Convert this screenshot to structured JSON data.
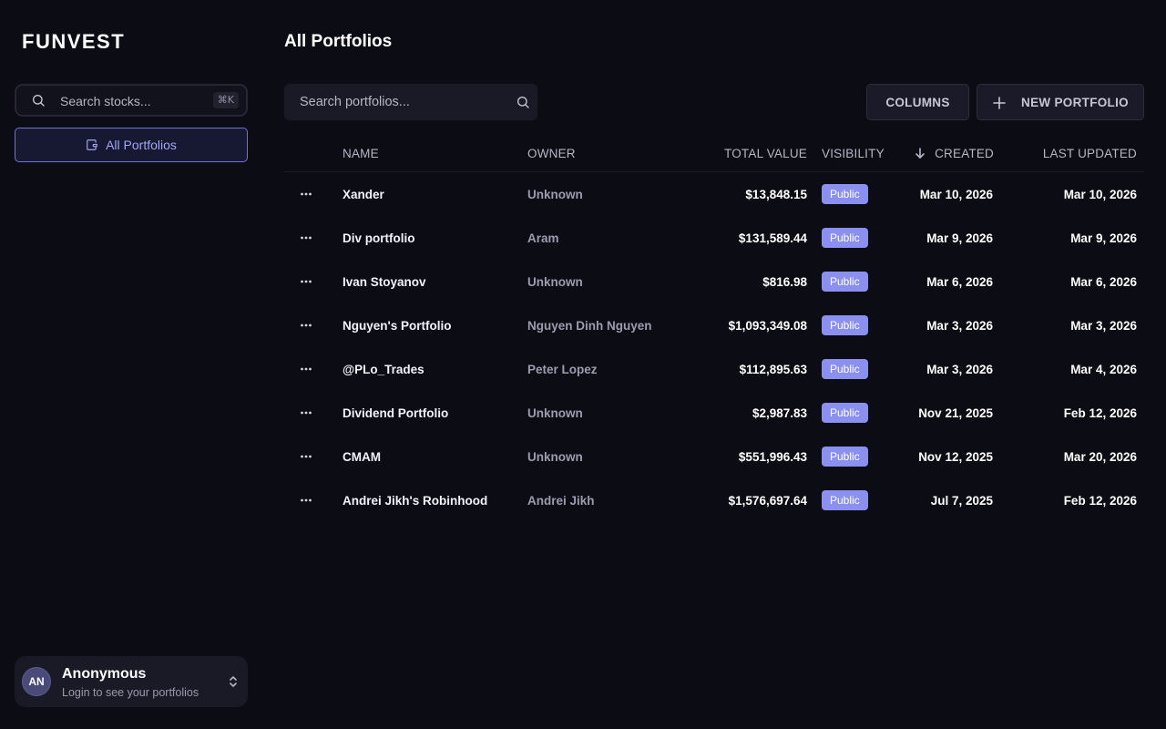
{
  "app": {
    "logo": "FUNVEST"
  },
  "sidebar": {
    "search_placeholder": "Search stocks...",
    "search_shortcut": "⌘K",
    "nav": [
      {
        "label": "All Portfolios",
        "active": true
      }
    ]
  },
  "user": {
    "initials": "AN",
    "name": "Anonymous",
    "subtitle": "Login to see your portfolios"
  },
  "main": {
    "title": "All Portfolios",
    "search_placeholder": "Search portfolios...",
    "columns_button": "COLUMNS",
    "new_button": "NEW PORTFOLIO"
  },
  "table": {
    "headers": {
      "name": "NAME",
      "owner": "OWNER",
      "total": "TOTAL VALUE",
      "visibility": "VISIBILITY",
      "created": "CREATED",
      "updated": "LAST UPDATED"
    },
    "sort": {
      "column": "created",
      "direction": "desc"
    },
    "rows": [
      {
        "name": "Xander",
        "owner": "Unknown",
        "total": "$13,848.15",
        "visibility": "Public",
        "created": "Mar 10, 2026",
        "updated": "Mar 10, 2026"
      },
      {
        "name": "Div portfolio",
        "owner": "Aram",
        "total": "$131,589.44",
        "visibility": "Public",
        "created": "Mar 9, 2026",
        "updated": "Mar 9, 2026"
      },
      {
        "name": "Ivan Stoyanov",
        "owner": "Unknown",
        "total": "$816.98",
        "visibility": "Public",
        "created": "Mar 6, 2026",
        "updated": "Mar 6, 2026"
      },
      {
        "name": "Nguyen's Portfolio",
        "owner": "Nguyen Dinh Nguyen",
        "total": "$1,093,349.08",
        "visibility": "Public",
        "created": "Mar 3, 2026",
        "updated": "Mar 3, 2026"
      },
      {
        "name": "@PLo_Trades",
        "owner": "Peter Lopez",
        "total": "$112,895.63",
        "visibility": "Public",
        "created": "Mar 3, 2026",
        "updated": "Mar 4, 2026"
      },
      {
        "name": "Dividend Portfolio",
        "owner": "Unknown",
        "total": "$2,987.83",
        "visibility": "Public",
        "created": "Nov 21, 2025",
        "updated": "Feb 12, 2026"
      },
      {
        "name": "CMAM",
        "owner": "Unknown",
        "total": "$551,996.43",
        "visibility": "Public",
        "created": "Nov 12, 2025",
        "updated": "Mar 20, 2026"
      },
      {
        "name": "Andrei Jikh's Robinhood",
        "owner": "Andrei Jikh",
        "total": "$1,576,697.64",
        "visibility": "Public",
        "created": "Jul 7, 2025",
        "updated": "Feb 12, 2026"
      }
    ]
  },
  "colors": {
    "background": "#0c0c14",
    "accent": "#8b8ff0",
    "nav_active_border": "#6f73d9"
  },
  "icons": {
    "search": "search-icon",
    "wallet": "wallet-icon",
    "plus": "plus-icon",
    "more": "more-horizontal-icon",
    "sort": "arrow-down-icon",
    "chevrons": "chevrons-up-down-icon"
  }
}
